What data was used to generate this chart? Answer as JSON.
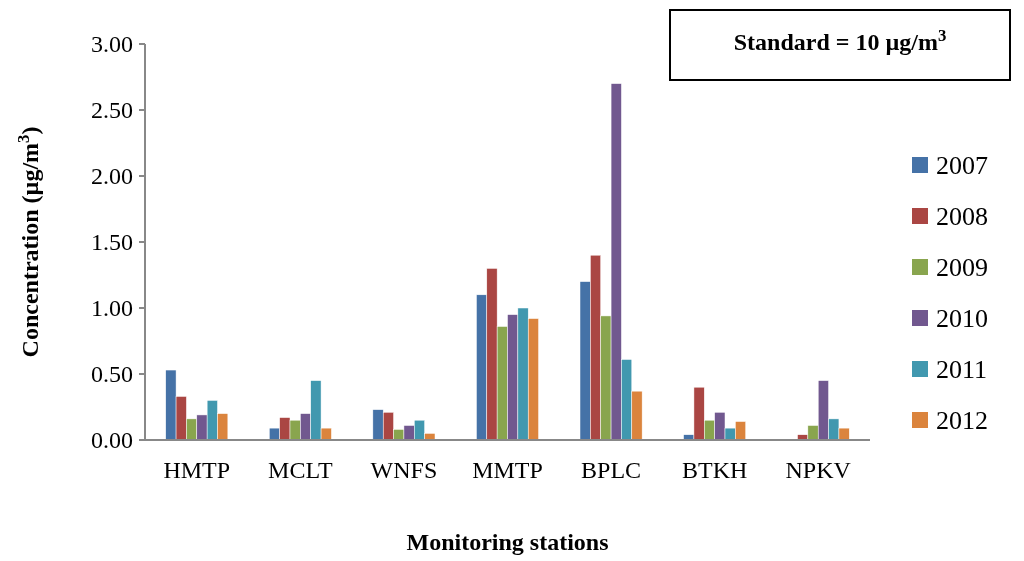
{
  "chart_data": {
    "type": "bar",
    "xlabel": "Monitoring stations",
    "ylabel": "Concentration (µg/m$^{3}$)",
    "categories": [
      "HMTP",
      "MCLT",
      "WNFS",
      "MMTP",
      "BPLC",
      "BTKH",
      "NPKV"
    ],
    "series": [
      {
        "name": "2007",
        "color": "#4572a7",
        "values": [
          0.53,
          0.09,
          0.23,
          1.1,
          1.2,
          0.04,
          0
        ]
      },
      {
        "name": "2008",
        "color": "#aa4643",
        "values": [
          0.33,
          0.17,
          0.21,
          1.3,
          1.4,
          0.4,
          0.04
        ]
      },
      {
        "name": "2009",
        "color": "#89a54e",
        "values": [
          0.16,
          0.15,
          0.08,
          0.86,
          0.94,
          0.15,
          0.11
        ]
      },
      {
        "name": "2010",
        "color": "#71588f",
        "values": [
          0.19,
          0.2,
          0.11,
          0.95,
          2.7,
          0.21,
          0.45
        ]
      },
      {
        "name": "2011",
        "color": "#4198af",
        "values": [
          0.3,
          0.45,
          0.15,
          1.0,
          0.61,
          0.09,
          0.16
        ]
      },
      {
        "name": "2012",
        "color": "#db843d",
        "values": [
          0.2,
          0.09,
          0.05,
          0.92,
          0.37,
          0.14,
          0.09
        ]
      }
    ],
    "ylim": [
      0,
      3
    ],
    "yticks": [
      {
        "value": 0,
        "label": "0.00"
      },
      {
        "value": 0.5,
        "label": "0.50"
      },
      {
        "value": 1,
        "label": "1.00"
      },
      {
        "value": 1.5,
        "label": "1.50"
      },
      {
        "value": 2,
        "label": "2.00"
      },
      {
        "value": 2.5,
        "label": "2.50"
      },
      {
        "value": 3,
        "label": "3.00"
      }
    ],
    "annotations": [
      "Standard = 10 µg/m$^{3}$"
    ],
    "legend": "right",
    "grid": false
  }
}
